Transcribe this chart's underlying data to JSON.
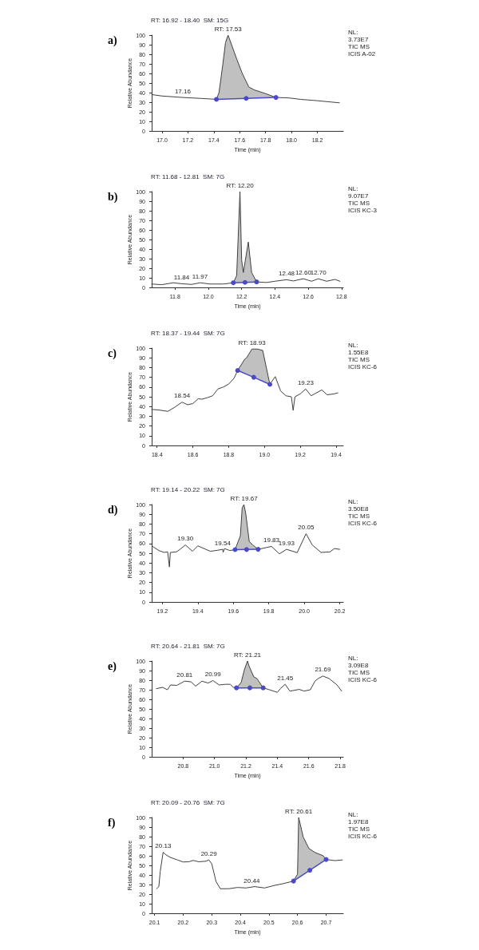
{
  "chart_data": [
    {
      "type": "line",
      "title": "a)",
      "subtitle": "RT: 16.92 - 18.40  SM: 15G",
      "xlabel": "Time (min)",
      "ylabel": "Relative Abundance",
      "xlim": [
        16.92,
        18.4
      ],
      "xticks": [
        {
          "value": 17,
          "label": "17.0"
        },
        17.2,
        17.4,
        17.6,
        17.8,
        {
          "value": 18,
          "label": "18.0"
        },
        18.2
      ],
      "ylim": [
        0,
        100
      ],
      "yticks": [
        0,
        10,
        20,
        30,
        40,
        50,
        60,
        70,
        80,
        90,
        100
      ],
      "grid": false,
      "marker": "none",
      "series": [
        {
          "color": "#404040",
          "x": [
            16.92,
            17.0,
            17.16,
            17.3,
            17.42,
            17.44,
            17.47,
            17.49,
            17.51,
            17.58,
            17.62,
            17.67,
            17.71,
            17.8,
            17.88,
            17.98,
            18.07,
            18.2,
            18.37
          ],
          "values": [
            38,
            36.5,
            35,
            34,
            33,
            40,
            70,
            92,
            100,
            74,
            60,
            46,
            43,
            39,
            35,
            34.5,
            33,
            31.6,
            29.4
          ]
        },
        {
          "type": "line",
          "color": "#4a4ac8",
          "marker": "circle",
          "x": [
            17.42,
            17.65,
            17.88
          ],
          "values": [
            33,
            34,
            35
          ]
        },
        {
          "type": "area",
          "color": "#c0c0c0",
          "x": [
            17.42,
            17.44,
            17.47,
            17.49,
            17.51,
            17.58,
            17.62,
            17.67,
            17.71,
            17.8,
            17.88
          ],
          "values": [
            33,
            40,
            70,
            92,
            100,
            74,
            60,
            46,
            43,
            39,
            35
          ]
        }
      ],
      "annotations": [
        {
          "text": "RT: 17.53",
          "x": 17.51,
          "y": 100
        },
        {
          "text": "17.16",
          "x": 17.16,
          "y": 35
        },
        "NL:\n3.73E7\nTIC MS\nICIS A-02"
      ]
    },
    {
      "type": "line",
      "title": "b)",
      "subtitle": "RT: 11.68 - 12.81  SM: 7G",
      "xlabel": "Time (min)",
      "ylabel": "Relative Abundance",
      "xlim": [
        11.66,
        12.81
      ],
      "xticks": [
        11.8,
        {
          "value": 12,
          "label": "12.0"
        },
        12.2,
        12.4,
        12.6,
        12.8
      ],
      "ylim": [
        0,
        100
      ],
      "yticks": [
        0,
        10,
        20,
        30,
        40,
        50,
        60,
        70,
        80,
        90,
        100
      ],
      "grid": false,
      "marker": "none",
      "series": [
        {
          "color": "#404040",
          "x": [
            11.66,
            11.72,
            11.79,
            11.84,
            11.9,
            11.95,
            12.01,
            12.09,
            12.15,
            12.17,
            12.19,
            12.2,
            12.21,
            12.24,
            12.26,
            12.29,
            12.35,
            12.4,
            12.47,
            12.51,
            12.57,
            12.62,
            12.66,
            12.71,
            12.76,
            12.79
          ],
          "values": [
            3.6,
            2.9,
            4.9,
            3.9,
            3.2,
            4.9,
            3.6,
            3.6,
            4.9,
            12.3,
            100,
            28.6,
            15.6,
            47.4,
            15.6,
            5.8,
            5.2,
            6.5,
            8.1,
            6.8,
            9.1,
            6.5,
            9.1,
            6.5,
            8.4,
            6.5
          ]
        },
        {
          "type": "line",
          "color": "#4a4ac8",
          "marker": "circle",
          "x": [
            12.15,
            12.22,
            12.29
          ],
          "values": [
            4.9,
            5.3,
            5.8
          ]
        },
        {
          "type": "area",
          "color": "#c0c0c0",
          "x": [
            12.15,
            12.17,
            12.19,
            12.2,
            12.21,
            12.24,
            12.26,
            12.29
          ],
          "values": [
            4.9,
            12.3,
            100,
            28.6,
            15.6,
            47.4,
            15.6,
            5.8
          ]
        }
      ],
      "annotations": [
        {
          "text": "RT: 12.20",
          "x": 12.19,
          "y": 100
        },
        {
          "text": "11.84",
          "x": 11.84,
          "y": 3.9
        },
        {
          "text": "11.97",
          "x": 11.95,
          "y": 4.9
        },
        {
          "text": "12.48",
          "x": 12.47,
          "y": 8.1
        },
        {
          "text": "12.60",
          "x": 12.57,
          "y": 9.1
        },
        {
          "text": "12.70",
          "x": 12.66,
          "y": 9.1
        },
        "NL:\n9.07E7\nTIC MS\nICIS KC-3"
      ]
    },
    {
      "type": "line",
      "title": "c)",
      "subtitle": "RT: 18.37 - 19.44  SM: 7G",
      "ylabel": "Relative Abundance",
      "xlim": [
        18.37,
        19.44
      ],
      "xticks": [
        18.4,
        18.6,
        18.8,
        {
          "value": 19,
          "label": "19.0"
        },
        19.2,
        19.4
      ],
      "ylim": [
        0,
        100
      ],
      "yticks": [
        0,
        10,
        20,
        30,
        40,
        50,
        60,
        70,
        80,
        90,
        100
      ],
      "grid": false,
      "marker": "none",
      "series": [
        {
          "color": "#404040",
          "x": [
            18.37,
            18.41,
            18.46,
            18.5,
            18.54,
            18.57,
            18.6,
            18.63,
            18.65,
            18.68,
            18.71,
            18.74,
            18.77,
            18.8,
            18.83,
            18.85,
            18.89,
            18.9,
            18.93,
            18.96,
            18.99,
            19.03,
            19.06,
            19.09,
            19.12,
            19.15,
            19.16,
            19.17,
            19.2,
            19.23,
            19.26,
            19.28,
            19.32,
            19.35,
            19.39,
            19.41
          ],
          "values": [
            37,
            36.4,
            35,
            39.4,
            44.5,
            41.8,
            43,
            48,
            47.5,
            49,
            51,
            58,
            60,
            63,
            69,
            77,
            88.7,
            90,
            99,
            99,
            97.6,
            62.7,
            70.7,
            56,
            51,
            50,
            36,
            50,
            53,
            58,
            51,
            53,
            57,
            52,
            53,
            54
          ]
        },
        {
          "type": "line",
          "color": "#4a4ac8",
          "marker": "circle",
          "x": [
            18.85,
            18.94,
            19.03
          ],
          "values": [
            77,
            70,
            62.7
          ]
        },
        {
          "type": "area",
          "color": "#c0c0c0",
          "x": [
            18.85,
            18.89,
            18.9,
            18.93,
            18.96,
            18.99,
            19.03
          ],
          "values": [
            77,
            88.7,
            90,
            99,
            99,
            97.6,
            62.7
          ]
        }
      ],
      "annotations": [
        {
          "text": "RT: 18.93",
          "x": 18.93,
          "y": 99
        },
        {
          "text": "18.54",
          "x": 18.54,
          "y": 44.5
        },
        {
          "text": "19.23",
          "x": 19.23,
          "y": 58
        },
        "NL:\n1.55E8\nTIC MS\nICIS KC-6"
      ]
    },
    {
      "type": "line",
      "title": "d)",
      "subtitle": "RT: 19.14 - 20.22  SM: 7G",
      "ylabel": "Relative Abundance",
      "xlim": [
        19.14,
        20.22
      ],
      "xticks": [
        19.2,
        19.4,
        19.6,
        19.8,
        {
          "value": 20,
          "label": "20.0"
        },
        20.2
      ],
      "ylim": [
        0,
        100
      ],
      "yticks": [
        0,
        10,
        20,
        30,
        40,
        50,
        60,
        70,
        80,
        90,
        100
      ],
      "grid": false,
      "marker": "none",
      "series": [
        {
          "color": "#404040",
          "x": [
            19.145,
            19.18,
            19.21,
            19.23,
            19.24,
            19.245,
            19.28,
            19.3,
            19.33,
            19.37,
            19.4,
            19.445,
            19.47,
            19.51,
            19.54,
            19.543,
            19.55,
            19.58,
            19.61,
            19.64,
            19.65,
            19.66,
            19.67,
            19.69,
            19.71,
            19.74,
            19.78,
            19.815,
            19.86,
            19.9,
            19.96,
            20.01,
            20.045,
            20.095,
            20.145,
            20.17,
            20.2
          ],
          "values": [
            57,
            52.8,
            50.8,
            51.4,
            35.9,
            50.8,
            51.4,
            54,
            58.5,
            52,
            57.6,
            54,
            52,
            53,
            54,
            51,
            54.8,
            52.8,
            53.7,
            68,
            96.6,
            100,
            91,
            62,
            58.5,
            54,
            55.6,
            57,
            49.4,
            54,
            50.6,
            70,
            58.5,
            50.8,
            51.4,
            54.8,
            54
          ]
        },
        {
          "type": "line",
          "color": "#4a4ac8",
          "marker": "circle",
          "x": [
            19.61,
            19.675,
            19.74
          ],
          "values": [
            53.7,
            53.8,
            54
          ]
        },
        {
          "type": "area",
          "color": "#c0c0c0",
          "x": [
            19.61,
            19.64,
            19.65,
            19.66,
            19.67,
            19.69,
            19.71,
            19.74
          ],
          "values": [
            53.7,
            68,
            96.6,
            100,
            91,
            62,
            58.5,
            54
          ]
        }
      ],
      "annotations": [
        {
          "text": "RT: 19.67",
          "x": 19.66,
          "y": 100
        },
        {
          "text": "19.30",
          "x": 19.33,
          "y": 58.5
        },
        {
          "text": "19.54",
          "x": 19.54,
          "y": 54
        },
        {
          "text": "19.83",
          "x": 19.815,
          "y": 57
        },
        {
          "text": "19.93",
          "x": 19.9,
          "y": 54
        },
        {
          "text": "20.05",
          "x": 20.01,
          "y": 70
        },
        "NL:\n3.50E8\nTIC MS\nICIS KC-6"
      ]
    },
    {
      "type": "line",
      "title": "e)",
      "subtitle": "RT: 20.64 - 21.81  SM: 7G",
      "xlabel": "Time (min)",
      "ylabel": "Relative Abundance",
      "xlim": [
        20.6,
        21.82
      ],
      "xticks": [
        20.8,
        {
          "value": 21,
          "label": "21.0"
        },
        21.2,
        21.4,
        21.6,
        21.8
      ],
      "ylim": [
        0,
        100
      ],
      "yticks": [
        0,
        10,
        20,
        30,
        40,
        50,
        60,
        70,
        80,
        90,
        100
      ],
      "grid": false,
      "marker": "none",
      "series": [
        {
          "color": "#404040",
          "x": [
            20.63,
            20.67,
            20.7,
            20.72,
            20.76,
            20.81,
            20.85,
            20.88,
            20.92,
            20.96,
            20.99,
            21.03,
            21.07,
            21.1,
            21.12,
            21.14,
            21.17,
            21.19,
            21.21,
            21.22,
            21.25,
            21.27,
            21.31,
            21.35,
            21.4,
            21.42,
            21.45,
            21.48,
            21.54,
            21.57,
            21.61,
            21.64,
            21.66,
            21.69,
            21.73,
            21.78,
            21.81
          ],
          "values": [
            71.2,
            72.5,
            70,
            75,
            74.6,
            79,
            78.3,
            73.8,
            79,
            77,
            79.6,
            75,
            75.7,
            75.7,
            72.5,
            72,
            77.7,
            90.8,
            100,
            94.8,
            83.5,
            81.7,
            72,
            70,
            67.3,
            71.2,
            75.7,
            68.6,
            70.4,
            68.6,
            70,
            79,
            81.7,
            84.3,
            81.7,
            75,
            68.6
          ]
        },
        {
          "type": "line",
          "color": "#4a4ac8",
          "marker": "circle",
          "x": [
            21.14,
            21.225,
            21.31
          ],
          "values": [
            72,
            72,
            72
          ]
        },
        {
          "type": "area",
          "color": "#c0c0c0",
          "x": [
            21.14,
            21.17,
            21.19,
            21.21,
            21.22,
            21.25,
            21.27,
            21.31
          ],
          "values": [
            72,
            77.7,
            90.8,
            100,
            94.8,
            83.5,
            81.7,
            72
          ]
        }
      ],
      "annotations": [
        {
          "text": "RT: 21.21",
          "x": 21.21,
          "y": 100
        },
        {
          "text": "20.81",
          "x": 20.81,
          "y": 79
        },
        {
          "text": "20.99",
          "x": 20.99,
          "y": 79.6
        },
        {
          "text": "21.45",
          "x": 21.45,
          "y": 75.7
        },
        {
          "text": "21.69",
          "x": 21.69,
          "y": 84.3
        },
        "NL:\n3.09E8\nTIC MS\nICIS KC-6"
      ]
    },
    {
      "type": "line",
      "title": "f)",
      "subtitle": "RT: 20.09 - 20.76  SM: 7G",
      "xlabel": "Time (min)",
      "ylabel": "Relative Abundance",
      "xlim": [
        20.09,
        20.76
      ],
      "xticks": [
        20.1,
        20.2,
        20.3,
        20.4,
        20.5,
        20.6,
        20.7
      ],
      "ylim": [
        0,
        100
      ],
      "yticks": [
        0,
        10,
        20,
        30,
        40,
        50,
        60,
        70,
        80,
        90,
        100
      ],
      "grid": false,
      "marker": "none",
      "series": [
        {
          "color": "#404040",
          "x": [
            20.107,
            20.115,
            20.12,
            20.13,
            20.14,
            20.155,
            20.18,
            20.2,
            20.22,
            20.235,
            20.255,
            20.28,
            20.29,
            20.3,
            20.315,
            20.33,
            20.36,
            20.39,
            20.42,
            20.45,
            20.485,
            20.52,
            20.55,
            20.586,
            20.6,
            20.604,
            20.62,
            20.64,
            20.66,
            20.69,
            20.7,
            20.73,
            20.757
          ],
          "values": [
            25.7,
            27.9,
            43.8,
            63.7,
            61,
            58.4,
            55.7,
            53.6,
            53.8,
            55.2,
            53.8,
            54.4,
            55.7,
            51.7,
            33.2,
            25.7,
            25.7,
            27,
            26.5,
            27.9,
            26.5,
            29.2,
            31,
            33.7,
            41,
            100,
            79.6,
            67.6,
            63.7,
            60,
            56.2,
            55,
            55.7
          ]
        },
        {
          "type": "line",
          "color": "#4a4ac8",
          "marker": "circle",
          "x": [
            20.586,
            20.643,
            20.7
          ],
          "values": [
            33.7,
            45,
            56.2
          ]
        },
        {
          "type": "area",
          "color": "#c0c0c0",
          "x": [
            20.586,
            20.6,
            20.604,
            20.62,
            20.64,
            20.66,
            20.69,
            20.7
          ],
          "values": [
            33.7,
            41,
            100,
            79.6,
            67.6,
            63.7,
            60,
            56.2
          ]
        }
      ],
      "annotations": [
        {
          "text": "RT: 20.61",
          "x": 20.604,
          "y": 100
        },
        {
          "text": "20.13",
          "x": 20.13,
          "y": 63.7
        },
        {
          "text": "20.29",
          "x": 20.29,
          "y": 55.7
        },
        {
          "text": "20.44",
          "x": 20.44,
          "y": 27
        },
        "NL:\n1.97E8\nTIC MS\nICIS KC-6"
      ]
    }
  ]
}
